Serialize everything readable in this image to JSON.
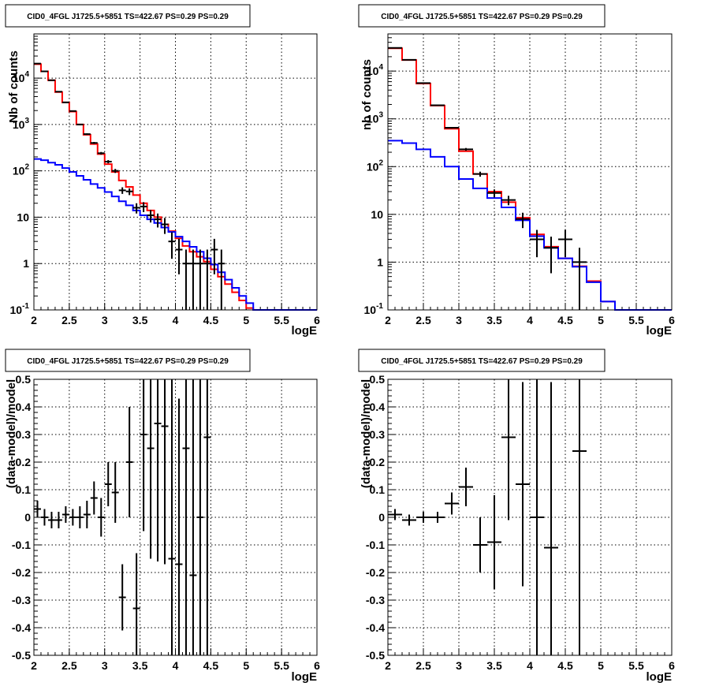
{
  "chart_data": [
    {
      "type": "line",
      "title": "CID0_4FGL J1725.5+5851 TS=422.67 PS=0.29 PS=0.29",
      "xlabel": "logE",
      "ylabel": "Nb of counts",
      "yscale": "log",
      "xlim": [
        2,
        6
      ],
      "ylim": [
        0.1,
        90000
      ],
      "x_ticks": [
        "2",
        "2.5",
        "3",
        "3.5",
        "4",
        "4.5",
        "5",
        "5.5",
        "6"
      ],
      "y_ticks": [
        "10^-1",
        "1",
        "10",
        "10^2",
        "10^3",
        "10^4"
      ],
      "grid": true,
      "bin_width": 0.1,
      "series": [
        {
          "color": "#ff0000",
          "kind": "step",
          "bin_lo": [
            2.0,
            2.1,
            2.2,
            2.3,
            2.4,
            2.5,
            2.6,
            2.7,
            2.8,
            2.9,
            3.0,
            3.1,
            3.2,
            3.3,
            3.4,
            3.5,
            3.6,
            3.7,
            3.8,
            3.9,
            4.0,
            4.1,
            4.2,
            4.3,
            4.4,
            4.5,
            4.6,
            4.7,
            4.8,
            4.9,
            5.0,
            5.1
          ],
          "values": [
            20000,
            14000,
            9000,
            5000,
            3000,
            1900,
            1000,
            600,
            380,
            230,
            140,
            95,
            62,
            45,
            30,
            20,
            14,
            10,
            7,
            5,
            3.5,
            2.4,
            1.8,
            1.4,
            1.1,
            0.75,
            0.52,
            0.36,
            0.24,
            0.16,
            0.11,
            0.1
          ]
        },
        {
          "color": "#0000ff",
          "kind": "step",
          "bin_lo": [
            2.0,
            2.1,
            2.2,
            2.3,
            2.4,
            2.5,
            2.6,
            2.7,
            2.8,
            2.9,
            3.0,
            3.1,
            3.2,
            3.3,
            3.4,
            3.5,
            3.6,
            3.7,
            3.8,
            3.9,
            4.0,
            4.1,
            4.2,
            4.3,
            4.4,
            4.5,
            4.6,
            4.7,
            4.8,
            4.9,
            5.0,
            5.1,
            5.2,
            5.3,
            5.4,
            5.5,
            5.6,
            5.7,
            5.8,
            5.9
          ],
          "values": [
            180,
            170,
            150,
            135,
            115,
            95,
            78,
            64,
            52,
            43,
            35,
            28,
            22,
            18,
            14,
            11,
            9,
            7.5,
            6,
            4.8,
            3.8,
            3,
            2.3,
            1.8,
            1.3,
            0.95,
            0.65,
            0.45,
            0.3,
            0.2,
            0.14,
            0.1,
            0.1,
            0.1,
            0.1,
            0.1,
            0.1,
            0.1,
            0.1,
            0.1
          ]
        },
        {
          "color": "#000000",
          "kind": "points",
          "x": [
            2.05,
            2.15,
            2.25,
            2.35,
            2.45,
            2.55,
            2.65,
            2.75,
            2.85,
            2.95,
            3.05,
            3.15,
            3.25,
            3.35,
            3.45,
            3.55,
            3.65,
            3.75,
            3.85,
            3.95,
            4.05,
            4.15,
            4.25,
            4.35,
            4.45,
            4.55,
            4.65
          ],
          "y": [
            20600,
            14000,
            9000,
            5100,
            3000,
            1950,
            1000,
            620,
            400,
            240,
            158,
            100,
            38,
            36,
            16,
            17,
            11,
            9,
            7,
            3,
            2,
            1,
            1,
            1,
            1,
            2,
            1
          ],
          "xerr": 0.05
        }
      ]
    },
    {
      "type": "line",
      "title": "CID0_4FGL J1725.5+5851 TS=422.67 PS=0.29 PS=0.29",
      "xlabel": "logE",
      "ylabel": "nb of counts",
      "yscale": "log",
      "xlim": [
        2,
        6
      ],
      "ylim": [
        0.1,
        60000
      ],
      "x_ticks": [
        "2",
        "2.5",
        "3",
        "3.5",
        "4",
        "4.5",
        "5",
        "5.5",
        "6"
      ],
      "y_ticks": [
        "10^-1",
        "1",
        "10",
        "10^2",
        "10^3",
        "10^4"
      ],
      "grid": true,
      "bin_width": 0.2,
      "series": [
        {
          "color": "#ff0000",
          "kind": "step",
          "bin_lo": [
            2.0,
            2.2,
            2.4,
            2.6,
            2.8,
            3.0,
            3.2,
            3.4,
            3.6,
            3.8,
            4.0,
            4.2,
            4.4,
            4.6,
            4.8,
            5.0,
            5.2
          ],
          "values": [
            30000,
            17000,
            5500,
            1900,
            620,
            210,
            70,
            30,
            18,
            8.5,
            3.8,
            2.1,
            1.2,
            0.82,
            0.4,
            0.15,
            0.1
          ]
        },
        {
          "color": "#0000ff",
          "kind": "step",
          "bin_lo": [
            2.0,
            2.2,
            2.4,
            2.6,
            2.8,
            3.0,
            3.2,
            3.4,
            3.6,
            3.8,
            4.0,
            4.2,
            4.4,
            4.6,
            4.8,
            5.0,
            5.2,
            5.4,
            5.6,
            5.8
          ],
          "values": [
            350,
            310,
            230,
            160,
            100,
            55,
            35,
            22,
            14,
            7.5,
            3.5,
            2.0,
            1.2,
            0.8,
            0.38,
            0.15,
            0.1,
            0.1,
            0.1,
            0.1
          ]
        },
        {
          "color": "#000000",
          "kind": "points",
          "x": [
            2.1,
            2.3,
            2.5,
            2.7,
            2.9,
            3.1,
            3.3,
            3.5,
            3.7,
            3.9,
            4.1,
            4.3,
            4.5,
            4.7
          ],
          "y": [
            30500,
            17200,
            5600,
            1920,
            650,
            230,
            70,
            28,
            20,
            8,
            3,
            2,
            3,
            1
          ],
          "xerr": 0.1
        }
      ]
    },
    {
      "type": "scatter",
      "title": "CID0_4FGL J1725.5+5851 TS=422.67 PS=0.29 PS=0.29",
      "xlabel": "logE",
      "ylabel": "(data-model)/model",
      "xlim": [
        2,
        6
      ],
      "ylim": [
        -0.5,
        0.5
      ],
      "x_ticks": [
        "2",
        "2.5",
        "3",
        "3.5",
        "4",
        "4.5",
        "5",
        "5.5",
        "6"
      ],
      "y_ticks": [
        "-0.5",
        "-0.4",
        "-0.3",
        "-0.2",
        "-0.1",
        "0",
        "0.1",
        "0.2",
        "0.3",
        "0.4",
        "0.5"
      ],
      "grid": true,
      "series": [
        {
          "color": "#000000",
          "x": [
            2.05,
            2.15,
            2.25,
            2.35,
            2.45,
            2.55,
            2.65,
            2.75,
            2.85,
            2.95,
            3.05,
            3.15,
            3.25,
            3.35,
            3.45,
            3.55,
            3.65,
            3.75,
            3.85,
            3.95,
            4.05,
            4.15,
            4.25,
            4.35,
            4.45
          ],
          "y": [
            0.03,
            0.0,
            -0.01,
            -0.01,
            0.01,
            0.0,
            0.0,
            0.01,
            0.07,
            0.0,
            0.12,
            0.09,
            -0.29,
            0.2,
            -0.33,
            0.3,
            0.25,
            0.34,
            0.33,
            -0.15,
            -0.17,
            0.25,
            -0.21,
            0.0,
            0.29
          ],
          "yerr": [
            0.03,
            0.03,
            0.03,
            0.03,
            0.03,
            0.03,
            0.04,
            0.05,
            0.06,
            0.07,
            0.08,
            0.11,
            0.12,
            0.2,
            0.2,
            0.35,
            0.4,
            0.5,
            0.5,
            0.7,
            0.6,
            0.8,
            0.8,
            0.9,
            1.0
          ],
          "xerr": 0.05
        }
      ]
    },
    {
      "type": "scatter",
      "title": "CID0_4FGL J1725.5+5851 TS=422.67 PS=0.29 PS=0.29",
      "xlabel": "logE",
      "ylabel": "(data-model)/model",
      "xlim": [
        2,
        6
      ],
      "ylim": [
        -0.5,
        0.5
      ],
      "x_ticks": [
        "2",
        "2.5",
        "3",
        "3.5",
        "4",
        "4.5",
        "5",
        "5.5",
        "6"
      ],
      "y_ticks": [
        "-0.5",
        "-0.4",
        "-0.3",
        "-0.2",
        "-0.1",
        "0",
        "0.1",
        "0.2",
        "0.3",
        "0.4",
        "0.5"
      ],
      "grid": true,
      "series": [
        {
          "color": "#000000",
          "x": [
            2.1,
            2.3,
            2.5,
            2.7,
            2.9,
            3.1,
            3.3,
            3.5,
            3.7,
            3.9,
            4.1,
            4.3,
            4.7
          ],
          "y": [
            0.01,
            -0.01,
            0.0,
            0.0,
            0.05,
            0.11,
            -0.1,
            -0.09,
            0.29,
            0.12,
            0.0,
            -0.11,
            0.24
          ],
          "yerr": [
            0.02,
            0.02,
            0.02,
            0.02,
            0.04,
            0.07,
            0.1,
            0.17,
            0.3,
            0.37,
            0.7,
            0.6,
            0.9
          ],
          "xerr": 0.1
        }
      ]
    }
  ]
}
